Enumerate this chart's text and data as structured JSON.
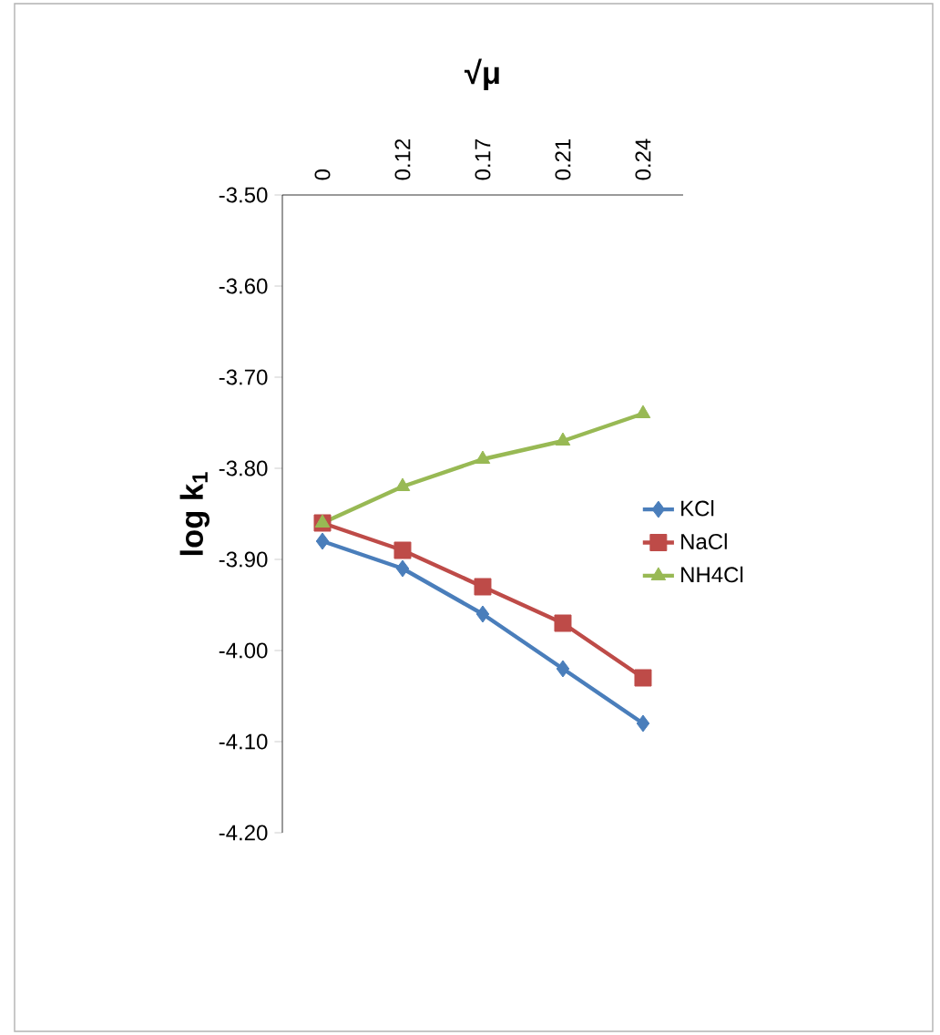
{
  "chart_data": {
    "type": "line",
    "title": "√μ",
    "ylabel": "log k$_{1}$",
    "categories": [
      "0",
      "0.12",
      "0.17",
      "0.21",
      "0.24"
    ],
    "series": [
      {
        "name": "KCl",
        "color": "#4a7ebb",
        "marker": "diamond",
        "values": [
          -3.88,
          -3.91,
          -3.96,
          -4.02,
          -4.08
        ]
      },
      {
        "name": "NaCl",
        "color": "#be4b48",
        "marker": "square",
        "values": [
          -3.86,
          -3.89,
          -3.93,
          -3.97,
          -4.03
        ]
      },
      {
        "name": "NH4Cl",
        "color": "#98b954",
        "marker": "triangle",
        "values": [
          -3.86,
          -3.82,
          -3.79,
          -3.77,
          -3.74
        ]
      }
    ],
    "ylim": [
      -4.2,
      -3.5
    ],
    "yticks": [
      {
        "value": -4.2,
        "label": "-4.20"
      },
      {
        "value": -4.1,
        "label": "-4.10"
      },
      {
        "value": -4.0,
        "label": "-4.00"
      },
      {
        "value": -3.9,
        "label": "-3.90"
      },
      {
        "value": -3.8,
        "label": "-3.80"
      },
      {
        "value": -3.7,
        "label": "-3.70"
      },
      {
        "value": -3.6,
        "label": "-3.60"
      },
      {
        "value": -3.5,
        "label": "-3.50"
      }
    ],
    "grid": false,
    "legend": "right"
  }
}
